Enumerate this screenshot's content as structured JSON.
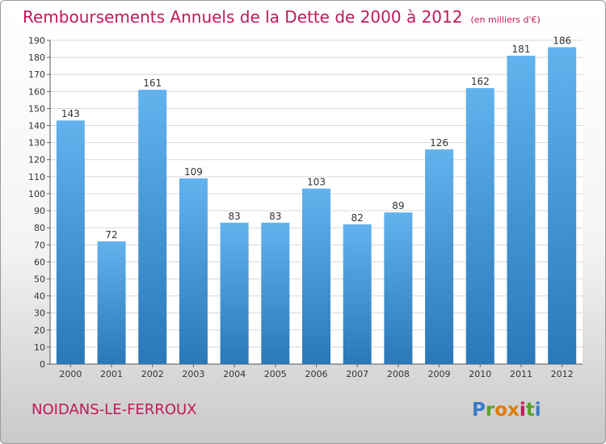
{
  "title": "Remboursements Annuels de la Dette de 2000 à 2012",
  "unit_note": "(en milliers d'€)",
  "commune": "NOIDANS-LE-FERROUX",
  "logo": {
    "text": "Proxiti",
    "colors": [
      "#3a7bc8",
      "#5aa02c",
      "#e07b00",
      "#e07b00",
      "#c2185b",
      "#5aa02c",
      "#3a7bc8"
    ]
  },
  "colors": {
    "title": "#c2185b",
    "bar_top": "#62b2ee",
    "bar_bottom": "#2a78b8",
    "grid": "#d8d8d8"
  },
  "chart_data": {
    "type": "bar",
    "categories": [
      "2000",
      "2001",
      "2002",
      "2003",
      "2004",
      "2005",
      "2006",
      "2007",
      "2008",
      "2009",
      "2010",
      "2011",
      "2012"
    ],
    "values": [
      143,
      72,
      161,
      109,
      83,
      83,
      103,
      82,
      89,
      126,
      162,
      181,
      186
    ],
    "ylim": [
      0,
      190
    ],
    "yticks": [
      0,
      10,
      20,
      30,
      40,
      50,
      60,
      70,
      80,
      90,
      100,
      110,
      120,
      130,
      140,
      150,
      160,
      170,
      180,
      190
    ],
    "grid": true,
    "data_labels": true
  }
}
